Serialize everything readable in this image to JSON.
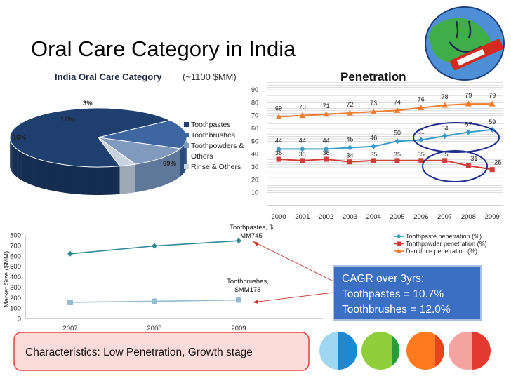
{
  "slide": {
    "title": "Oral Care Category in India",
    "characteristics": "Characteristics: Low Penetration, Growth stage",
    "cagr_lines": [
      "CAGR over 3yrs:",
      "Toothpastes = 10.7%",
      "Toothbrushes = 12.0%"
    ],
    "colors": {
      "title": "#1f5fa8",
      "pie_dark": "#1f3f6e",
      "pie_mid": "#3e66a1",
      "pie_light": "#7f9abd",
      "pie_lighter": "#c8d2e0",
      "paste_pen": "#3a9dc9",
      "powder_pen": "#d03d35",
      "dentifrice_pen": "#f07d2e",
      "market_paste": "#2b8a96",
      "market_brush": "#92bcd3",
      "char_box_bg": "#fbdcd9",
      "char_box_border": "#e0453f",
      "cagr_bg": "#3b6fc4"
    },
    "icons": [
      "globe-logo-icon",
      "circle-blue-icon",
      "circle-green-icon",
      "circle-orange-icon",
      "circle-red-icon"
    ]
  },
  "chart_data": [
    {
      "type": "pie",
      "title": "India Oral Care Category",
      "subtitle": "(~1100 $MM)",
      "categories": [
        "Toothpastes",
        "Toothbrushes",
        "Toothpowders & Others",
        "Rinse & Others"
      ],
      "values": [
        69,
        16,
        12,
        3
      ],
      "data_labels": [
        "69%",
        "16%",
        "12%",
        "3%"
      ],
      "legend": {
        "placement": "right",
        "entries": [
          {
            "lines": [
              "Toothpastes"
            ]
          },
          {
            "lines": [
              "Toothbrushes"
            ]
          },
          {
            "lines": [
              "Toothpowders &",
              "Others"
            ]
          },
          {
            "lines": [
              "Rinse & Others"
            ]
          }
        ]
      }
    },
    {
      "type": "line",
      "title": "Penetration",
      "x": [
        "2000",
        "2001",
        "2002",
        "2003",
        "2004",
        "2005",
        "2006",
        "2007",
        "2008",
        "2009"
      ],
      "ylim": [
        0,
        90
      ],
      "yticks": [
        "-",
        "10",
        "20",
        "30",
        "40",
        "50",
        "60",
        "70",
        "80",
        "90"
      ],
      "grid": true,
      "series": [
        {
          "name": "Toothpaste penetration (%)",
          "values": [
            44,
            44,
            44,
            45,
            46,
            50,
            51,
            54,
            57,
            59
          ],
          "labels": [
            "44",
            "44",
            "44",
            "45",
            "46",
            "50",
            "51",
            "54",
            "57",
            "59"
          ]
        },
        {
          "name": "Toothpowder penetration (%)",
          "values": [
            36,
            35,
            36,
            34,
            35,
            35,
            35,
            35,
            31,
            28
          ],
          "labels": [
            "36",
            "35",
            "36",
            "34",
            "35",
            "35",
            "35",
            "35",
            "31",
            "28"
          ]
        },
        {
          "name": "Dentifrice penetration (%)",
          "values": [
            69,
            70,
            71,
            72,
            73,
            74,
            76,
            78,
            79,
            79
          ],
          "labels": [
            "69",
            "70",
            "71",
            "72",
            "73",
            "74",
            "76",
            "78",
            "79",
            "79"
          ]
        }
      ],
      "legend": {
        "placement": "bottom-right"
      }
    },
    {
      "type": "line",
      "x": [
        "2007",
        "2008",
        "2009"
      ],
      "ylabel": "Market Size ($MM)",
      "ylim": [
        0,
        800
      ],
      "yticks": [
        "0",
        "100",
        "200",
        "300",
        "400",
        "500",
        "600",
        "700",
        "800"
      ],
      "series": [
        {
          "values": [
            620,
            695,
            745
          ]
        },
        {
          "values": [
            155,
            165,
            178
          ]
        }
      ],
      "annotations": [
        {
          "lines": [
            "Toothpastes, $",
            "MM745"
          ]
        },
        {
          "lines": [
            "Toothbrushes,",
            "$MM178"
          ]
        }
      ]
    }
  ]
}
